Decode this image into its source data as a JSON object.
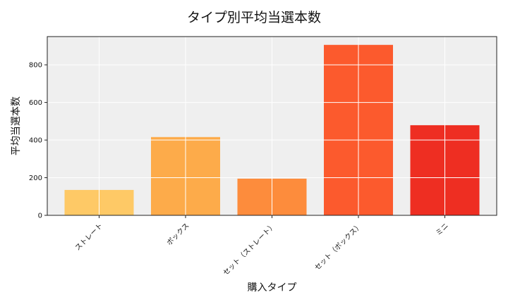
{
  "chart_data": {
    "type": "bar",
    "title": "タイプ別平均当選本数",
    "xlabel": "購入タイプ",
    "ylabel": "平均当選本数",
    "categories": [
      "ストレート",
      "ボックス",
      "セット（ストレート）",
      "セット（ボックス）",
      "ミニ"
    ],
    "values": [
      135,
      416,
      195,
      906,
      479
    ],
    "colors": [
      "#fec966",
      "#fdab4a",
      "#fd8c3c",
      "#fc5a2d",
      "#ee2e22"
    ],
    "ylim": [
      0,
      950
    ],
    "yticks": [
      0,
      200,
      400,
      600,
      800
    ],
    "grid": true,
    "background": "#efefef"
  }
}
